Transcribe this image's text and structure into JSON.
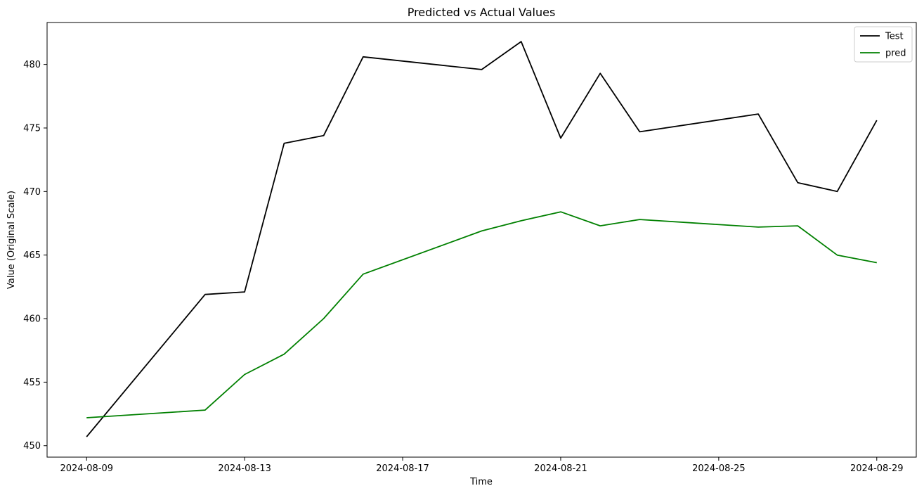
{
  "chart_data": {
    "type": "line",
    "title": "Predicted vs Actual Values",
    "xlabel": "Time",
    "ylabel": "Value (Original Scale)",
    "x_ticks": [
      "2024-08-09",
      "2024-08-13",
      "2024-08-17",
      "2024-08-21",
      "2024-08-25",
      "2024-08-29"
    ],
    "y_ticks": [
      450,
      455,
      460,
      465,
      470,
      475,
      480
    ],
    "xlim": [
      "2024-08-08",
      "2024-08-30"
    ],
    "ylim": [
      449.1,
      483.3
    ],
    "grid": false,
    "legend_position": "top-right",
    "series": [
      {
        "name": "Test",
        "color": "#000000",
        "points": [
          {
            "x": "2024-08-09",
            "y": 450.7
          },
          {
            "x": "2024-08-12",
            "y": 461.9
          },
          {
            "x": "2024-08-13",
            "y": 462.1
          },
          {
            "x": "2024-08-14",
            "y": 473.8
          },
          {
            "x": "2024-08-15",
            "y": 474.4
          },
          {
            "x": "2024-08-16",
            "y": 480.6
          },
          {
            "x": "2024-08-19",
            "y": 479.6
          },
          {
            "x": "2024-08-20",
            "y": 481.8
          },
          {
            "x": "2024-08-21",
            "y": 474.2
          },
          {
            "x": "2024-08-22",
            "y": 479.3
          },
          {
            "x": "2024-08-23",
            "y": 474.7
          },
          {
            "x": "2024-08-26",
            "y": 476.1
          },
          {
            "x": "2024-08-27",
            "y": 470.7
          },
          {
            "x": "2024-08-28",
            "y": 470.0
          },
          {
            "x": "2024-08-29",
            "y": 475.6
          }
        ]
      },
      {
        "name": "pred",
        "color": "#008000",
        "points": [
          {
            "x": "2024-08-09",
            "y": 452.2
          },
          {
            "x": "2024-08-12",
            "y": 452.8
          },
          {
            "x": "2024-08-13",
            "y": 455.6
          },
          {
            "x": "2024-08-14",
            "y": 457.2
          },
          {
            "x": "2024-08-15",
            "y": 460.0
          },
          {
            "x": "2024-08-16",
            "y": 463.5
          },
          {
            "x": "2024-08-19",
            "y": 466.9
          },
          {
            "x": "2024-08-20",
            "y": 467.7
          },
          {
            "x": "2024-08-21",
            "y": 468.4
          },
          {
            "x": "2024-08-22",
            "y": 467.3
          },
          {
            "x": "2024-08-23",
            "y": 467.8
          },
          {
            "x": "2024-08-26",
            "y": 467.2
          },
          {
            "x": "2024-08-27",
            "y": 467.3
          },
          {
            "x": "2024-08-28",
            "y": 465.0
          },
          {
            "x": "2024-08-29",
            "y": 464.4
          }
        ]
      }
    ]
  }
}
